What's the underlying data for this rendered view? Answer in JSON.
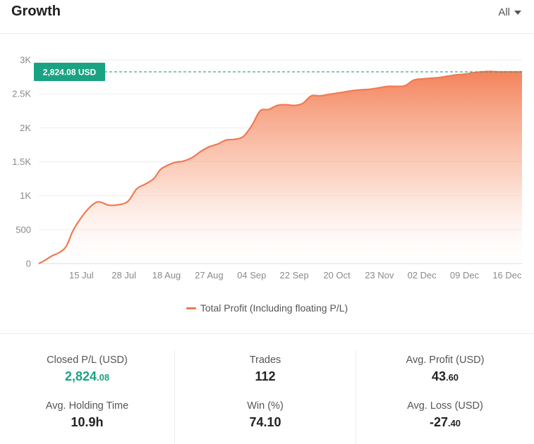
{
  "header": {
    "title": "Growth",
    "range_label": "All"
  },
  "chart_data": {
    "type": "area",
    "title": "Growth",
    "xlabel": "",
    "ylabel": "",
    "ylim": [
      0,
      3000
    ],
    "y_ticks": [
      0,
      500,
      1000,
      1500,
      2000,
      2500,
      3000
    ],
    "y_tick_labels": [
      "0",
      "500",
      "1K",
      "1.5K",
      "2K",
      "2.5K",
      "3K"
    ],
    "x_tick_labels": [
      "15 Jul",
      "28 Jul",
      "18 Aug",
      "27 Aug",
      "04 Sep",
      "22 Sep",
      "20 Oct",
      "23 Nov",
      "02 Dec",
      "09 Dec",
      "16 Dec"
    ],
    "x_tick_index": [
      1,
      2,
      3,
      4,
      5,
      6,
      7,
      8,
      9,
      10,
      11
    ],
    "x_range": [
      0,
      11.35
    ],
    "series": [
      {
        "name": "Total Profit (Including floating P/L)",
        "color": "#f07a53",
        "x": [
          0,
          0.15,
          0.3,
          0.5,
          0.65,
          0.8,
          1.0,
          1.2,
          1.4,
          1.65,
          1.9,
          2.1,
          2.3,
          2.5,
          2.7,
          2.85,
          3.0,
          3.2,
          3.4,
          3.6,
          3.8,
          4.0,
          4.2,
          4.4,
          4.6,
          4.8,
          5.0,
          5.2,
          5.4,
          5.6,
          5.8,
          6.0,
          6.2,
          6.4,
          6.6,
          6.8,
          7.0,
          7.2,
          7.4,
          7.6,
          7.8,
          8.0,
          8.2,
          8.4,
          8.6,
          8.8,
          9.0,
          9.2,
          9.4,
          9.6,
          9.8,
          10.0,
          10.2,
          10.4,
          10.6,
          10.8,
          11.0,
          11.2,
          11.35
        ],
        "values": [
          0,
          50,
          110,
          170,
          260,
          480,
          680,
          830,
          910,
          860,
          870,
          920,
          1100,
          1170,
          1250,
          1380,
          1440,
          1490,
          1510,
          1560,
          1650,
          1720,
          1760,
          1820,
          1830,
          1870,
          2030,
          2250,
          2270,
          2330,
          2340,
          2330,
          2360,
          2470,
          2470,
          2490,
          2510,
          2530,
          2550,
          2560,
          2570,
          2590,
          2610,
          2610,
          2620,
          2700,
          2720,
          2730,
          2740,
          2760,
          2780,
          2790,
          2810,
          2824.08,
          2830,
          2824.08,
          2824.08,
          2824.08,
          2824.08
        ]
      }
    ],
    "annotation": {
      "label": "2,824.08 USD",
      "value": 2824.08,
      "color": "#1aa382"
    }
  },
  "legend": {
    "label": "Total Profit (Including floating P/L)"
  },
  "stats": {
    "closed_pl": {
      "label": "Closed P/L (USD)",
      "int": "2,824",
      "dec": ".08"
    },
    "trades": {
      "label": "Trades",
      "value": "112"
    },
    "avg_profit": {
      "label": "Avg. Profit (USD)",
      "int": "43",
      "dec": ".60"
    },
    "avg_holding": {
      "label": "Avg. Holding Time",
      "value": "10.9h"
    },
    "win": {
      "label": "Win (%)",
      "value": "74.10"
    },
    "avg_loss": {
      "label": "Avg. Loss (USD)",
      "int": "-27",
      "dec": ".40"
    }
  }
}
